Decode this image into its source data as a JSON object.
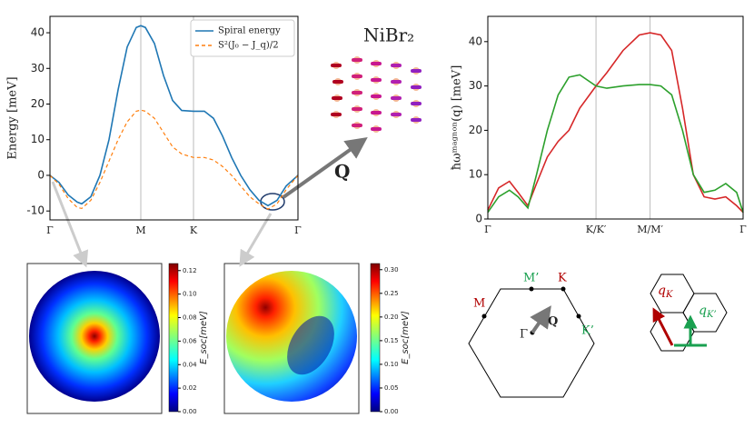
{
  "chart_data": [
    {
      "type": "line",
      "ylabel": "Energy [meV]",
      "legend": "upper right",
      "grid": "x",
      "x": [
        0,
        0.1,
        0.2,
        0.3,
        0.35,
        0.45,
        0.55,
        0.65,
        0.75,
        0.85,
        0.95,
        1.0,
        1.05,
        1.15,
        1.25,
        1.35,
        1.45,
        1.58,
        1.7,
        1.8,
        1.9,
        2.0,
        2.1,
        2.2,
        2.3,
        2.4,
        2.5,
        2.6,
        2.73
      ],
      "series": [
        {
          "name": "Spiral energy",
          "color": "#1f77b4",
          "dash": false,
          "values": [
            0,
            -2,
            -5.5,
            -7.5,
            -8,
            -6,
            0,
            10,
            24,
            36,
            41.5,
            42,
            41.5,
            37,
            28,
            21,
            18.2,
            18,
            18,
            16,
            11,
            5,
            0,
            -4,
            -7,
            -8.5,
            -7,
            -3,
            0
          ]
        },
        {
          "name": "S²(J₀ − J_q)/2",
          "color": "#ff7f0e",
          "dash": true,
          "values": [
            0,
            -2.5,
            -6.5,
            -9,
            -9.3,
            -7,
            -2,
            4,
            10,
            15,
            18,
            18.3,
            18,
            16,
            12,
            8,
            6,
            5,
            5,
            4.3,
            2.5,
            0,
            -3,
            -6,
            -8,
            -9.5,
            -8,
            -4,
            0
          ]
        }
      ],
      "xlim": [
        0,
        2.73
      ],
      "xticks": [
        {
          "value": 0,
          "label": "Γ"
        },
        {
          "value": 1,
          "label": "M"
        },
        {
          "value": 1.58,
          "label": "K"
        },
        {
          "value": 2.73,
          "label": "Γ"
        }
      ],
      "ylim": [
        -12.5,
        44.6
      ],
      "yticks": [
        -10,
        0,
        10,
        20,
        30,
        40
      ],
      "annotations": [
        "NiBr₂",
        "Q"
      ]
    },
    {
      "type": "line",
      "ylabel": "ħωᵐᵃᵍⁿᵒⁿ(q) [meV]",
      "grid": "x",
      "x": [
        0,
        0.1,
        0.2,
        0.28,
        0.37,
        0.45,
        0.55,
        0.65,
        0.75,
        0.85,
        1.0,
        1.1,
        1.25,
        1.4,
        1.5,
        1.6,
        1.7,
        1.8,
        1.9,
        2.0,
        2.1,
        2.2,
        2.3,
        2.36
      ],
      "series": [
        {
          "color": "#d62728",
          "values": [
            2,
            7,
            8.5,
            6,
            3,
            8,
            14,
            17.5,
            20,
            25,
            30,
            33,
            38,
            41.5,
            42,
            41.5,
            38,
            25,
            10,
            5,
            4.5,
            5,
            3,
            1.5
          ]
        },
        {
          "color": "#2ca02c",
          "values": [
            1.5,
            5,
            6.5,
            5,
            2.5,
            10,
            20,
            28,
            32,
            32.5,
            30,
            29.5,
            30,
            30.3,
            30.3,
            30,
            28,
            20,
            10,
            6,
            6.5,
            8,
            6,
            1.5
          ]
        }
      ],
      "xlim": [
        0,
        2.36
      ],
      "xticks": [
        {
          "value": 0,
          "label": "Γ"
        },
        {
          "value": 1,
          "label": "K/K′"
        },
        {
          "value": 1.5,
          "label": "M/M′"
        },
        {
          "value": 2.36,
          "label": "Γ"
        }
      ],
      "ylim": [
        0,
        45.7
      ],
      "yticks": [
        0,
        10,
        20,
        30,
        40
      ]
    },
    {
      "type": "heatmap",
      "colorbar_label": "E_soc[meV]",
      "clim": [
        0,
        0.126
      ],
      "cticks": [
        {
          "value": 0,
          "label": "0.00"
        },
        {
          "value": 0.02,
          "label": "0.02"
        },
        {
          "value": 0.04,
          "label": "0.04"
        },
        {
          "value": 0.06,
          "label": "0.06"
        },
        {
          "value": 0.08,
          "label": "0.08"
        },
        {
          "value": 0.1,
          "label": "0.10"
        },
        {
          "value": 0.12,
          "label": "0.12"
        }
      ]
    },
    {
      "type": "heatmap",
      "colorbar_label": "E_soc[meV]",
      "clim": [
        0,
        0.313
      ],
      "cticks": [
        {
          "value": 0,
          "label": "0.00"
        },
        {
          "value": 0.05,
          "label": "0.05"
        },
        {
          "value": 0.1,
          "label": "0.10"
        },
        {
          "value": 0.15,
          "label": "0.15"
        },
        {
          "value": 0.2,
          "label": "0.20"
        },
        {
          "value": 0.25,
          "label": "0.25"
        },
        {
          "value": 0.3,
          "label": "0.30"
        }
      ]
    }
  ],
  "diagrams": {
    "brillouin": {
      "labels": [
        "M’",
        "K",
        "M",
        "Γ",
        "Q",
        "K’"
      ]
    },
    "vectors": {
      "red": {
        "symbol": "q",
        "sub": "K"
      },
      "green": {
        "symbol": "q",
        "sub": "K’"
      }
    }
  }
}
